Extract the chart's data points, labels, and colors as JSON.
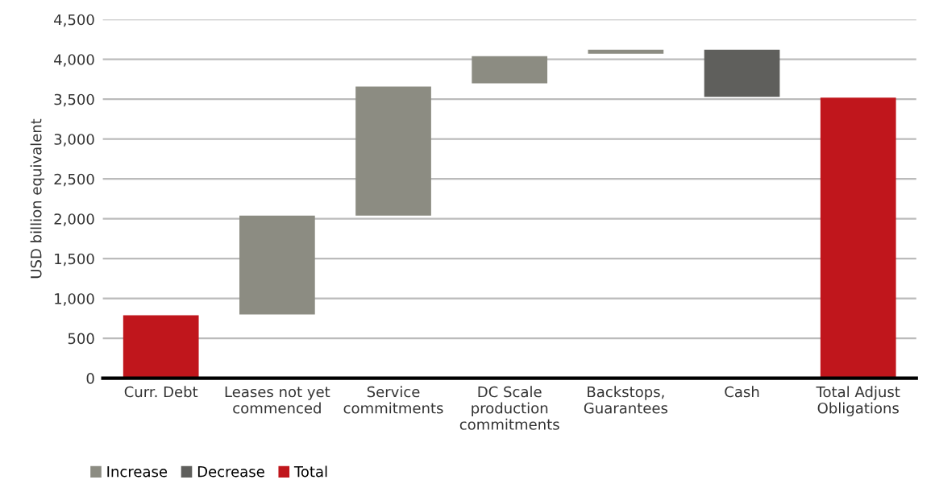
{
  "chart_data": {
    "type": "bar",
    "ylabel": "USD billion equivalent",
    "categories": [
      "Curr. Debt",
      "Leases not yet\ncommenced",
      "Service\ncommitments",
      "DC Scale\nproduction\ncommitments",
      "Backstops,\nGuarantees",
      "Cash",
      "Total Adjust\nObligations"
    ],
    "series": [
      {
        "name": "Increase",
        "color": "#8c8c82",
        "values": [
          null,
          1240,
          1620,
          340,
          50,
          null,
          null
        ],
        "base": [
          null,
          800,
          2040,
          3700,
          4070,
          null,
          null
        ]
      },
      {
        "name": "Decrease",
        "color": "#5f5f5c",
        "values": [
          null,
          null,
          null,
          null,
          null,
          590,
          null
        ],
        "base": [
          null,
          null,
          null,
          null,
          null,
          3530,
          null
        ]
      },
      {
        "name": "Total",
        "color": "#c0161c",
        "values": [
          790,
          null,
          null,
          null,
          null,
          null,
          3520
        ],
        "base": [
          0,
          null,
          null,
          null,
          null,
          null,
          0
        ]
      }
    ],
    "ylim": [
      0,
      4500
    ],
    "yticks": [
      0,
      500,
      {
        "value": 1000,
        "label": "1,000"
      },
      {
        "value": 1500,
        "label": "1,500"
      },
      {
        "value": 2000,
        "label": "2,000"
      },
      {
        "value": 2500,
        "label": "2,500"
      },
      {
        "value": 3000,
        "label": "3,000"
      },
      {
        "value": 3500,
        "label": "3,500"
      },
      {
        "value": 4000,
        "label": "4,000"
      },
      {
        "value": 4500,
        "label": "4,500"
      }
    ],
    "grid": "y",
    "legend": "bottom left"
  }
}
